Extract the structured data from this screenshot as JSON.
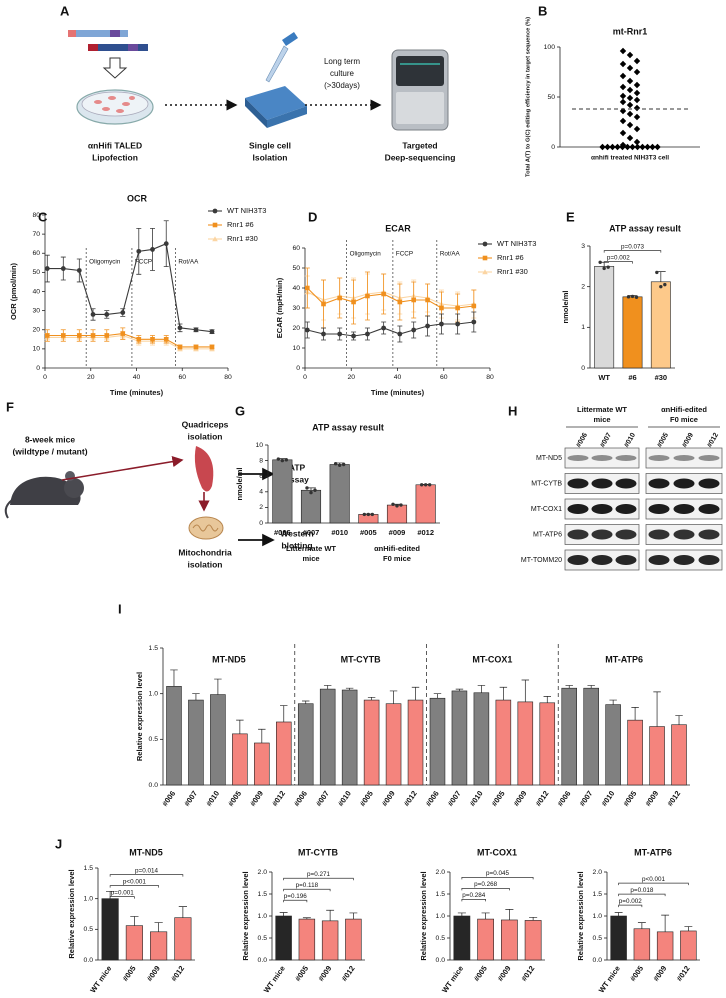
{
  "panel_labels": [
    "A",
    "B",
    "C",
    "D",
    "E",
    "F",
    "G",
    "H",
    "I",
    "J"
  ],
  "panel_a": {
    "steps": [
      [
        "αnHifi TALED",
        "Lipofection"
      ],
      [
        "Single cell",
        "Isolation"
      ],
      [
        "Targeted",
        "Deep-sequencing"
      ]
    ],
    "arrow_label": [
      "Long term",
      "culture",
      "(>30days)"
    ]
  },
  "panel_f": {
    "mouse": [
      "8-week mice",
      "(wildtype / mutant)"
    ],
    "tissue": [
      "Quadriceps",
      "isolation"
    ],
    "organelle": [
      "Mitochondria",
      "isolation"
    ],
    "assays": [
      [
        "ATP",
        "assay"
      ],
      [
        "Western",
        "blotting"
      ]
    ]
  },
  "panel_h": {
    "groups": [
      [
        "Littermate WT",
        "mice"
      ],
      [
        "αnHifi-edited",
        "F0 mice"
      ]
    ],
    "lanes": [
      "#006",
      "#007",
      "#010",
      "#005",
      "#009",
      "#012"
    ],
    "proteins": [
      "MT-ND5",
      "MT-CYTB",
      "MT-COX1",
      "MT-ATP6",
      "MT-TOMM20"
    ]
  },
  "chart_data": [
    {
      "type": "scatter",
      "title": "mt-Rnr1",
      "ylabel": "Total A(T) to G(C) editing efficiency in target sequence (%)",
      "category": "αnhifi treated NIH3T3 cell",
      "values": [
        96,
        92,
        86,
        83,
        79,
        75,
        71,
        66,
        62,
        60,
        57,
        54,
        51,
        49,
        47,
        45,
        42,
        39,
        36,
        33,
        30,
        26,
        22,
        18,
        14,
        9,
        5,
        2,
        0,
        0,
        0,
        0,
        0,
        0,
        0,
        0,
        0,
        0,
        0,
        0
      ],
      "hline": 38,
      "ylim": [
        0,
        100
      ],
      "yticks": [
        0,
        50,
        100
      ],
      "color": "#000000"
    },
    {
      "type": "line",
      "title": "OCR",
      "xlabel": "Time (minutes)",
      "ylabel": "OCR (pmol/min)",
      "x": [
        1,
        8,
        15,
        21,
        27,
        34,
        41,
        47,
        53,
        59,
        66,
        73
      ],
      "xlim": [
        0,
        80
      ],
      "xticks": [
        0,
        20,
        40,
        60,
        80
      ],
      "ylim": [
        0,
        80
      ],
      "yticks": [
        0,
        10,
        20,
        30,
        40,
        50,
        60,
        70,
        80
      ],
      "annotations": [
        {
          "label": "Oligomycin",
          "x": 18
        },
        {
          "label": "FCCP",
          "x": 38
        },
        {
          "label": "Rot/AA",
          "x": 57
        }
      ],
      "series": [
        {
          "name": "WT NIH3T3",
          "color": "#3a3a3a",
          "marker": "circle",
          "values": [
            52,
            52,
            51,
            28,
            28,
            29,
            61,
            62,
            65,
            21,
            20,
            19
          ],
          "errors": [
            7,
            6,
            6,
            3,
            2,
            2,
            12,
            11,
            12,
            2,
            1,
            1
          ]
        },
        {
          "name": "Rnr1 #6",
          "color": "#f0901e",
          "marker": "square",
          "values": [
            17,
            17,
            17,
            17,
            17,
            18,
            15,
            15,
            15,
            11,
            11,
            11
          ],
          "errors": [
            3,
            3,
            3,
            3,
            3,
            3,
            2,
            2,
            2,
            1,
            1,
            1
          ]
        },
        {
          "name": "Rnr1 #30",
          "color": "#fbd5a3",
          "marker": "triangle",
          "values": [
            16,
            16,
            16,
            16,
            16,
            17,
            14,
            14,
            14,
            10,
            10,
            10
          ],
          "errors": [
            2,
            2,
            2,
            2,
            2,
            2,
            2,
            2,
            2,
            1,
            1,
            1
          ]
        }
      ]
    },
    {
      "type": "line",
      "title": "ECAR",
      "xlabel": "Time (minutes)",
      "ylabel": "ECAR (mpH/min)",
      "x": [
        1,
        8,
        15,
        21,
        27,
        34,
        41,
        47,
        53,
        59,
        66,
        73
      ],
      "xlim": [
        0,
        80
      ],
      "xticks": [
        0,
        20,
        40,
        60,
        80
      ],
      "ylim": [
        0,
        60
      ],
      "yticks": [
        0,
        10,
        20,
        30,
        40,
        50,
        60
      ],
      "annotations": [
        {
          "label": "Oligomycin",
          "x": 18
        },
        {
          "label": "FCCP",
          "x": 38
        },
        {
          "label": "Rot/AA",
          "x": 57
        }
      ],
      "series": [
        {
          "name": "WT NIH3T3",
          "color": "#3a3a3a",
          "marker": "circle",
          "values": [
            19,
            17,
            17,
            16,
            17,
            20,
            17,
            19,
            21,
            22,
            22,
            23
          ],
          "errors": [
            4,
            3,
            3,
            2,
            3,
            3,
            4,
            4,
            5,
            5,
            5,
            5
          ]
        },
        {
          "name": "Rnr1 #6",
          "color": "#f0901e",
          "marker": "square",
          "values": [
            40,
            32,
            35,
            33,
            36,
            37,
            33,
            34,
            34,
            30,
            30,
            31
          ],
          "errors": [
            10,
            12,
            10,
            11,
            12,
            10,
            9,
            9,
            8,
            8,
            7,
            8
          ]
        },
        {
          "name": "Rnr1 #30",
          "color": "#fbd5a3",
          "marker": "triangle",
          "values": [
            38,
            34,
            36,
            35,
            37,
            38,
            35,
            36,
            35,
            32,
            31,
            32
          ],
          "errors": [
            8,
            10,
            9,
            10,
            10,
            9,
            8,
            8,
            7,
            7,
            7,
            7
          ]
        }
      ]
    },
    {
      "type": "bar",
      "title": "ATP assay result",
      "ylabel": "nmole/ml",
      "categories": [
        "WT",
        "#6",
        "#30"
      ],
      "values": [
        2.5,
        1.75,
        2.12
      ],
      "errors": [
        0.1,
        0.03,
        0.25
      ],
      "points": [
        [
          2.6,
          2.45,
          2.48
        ],
        [
          1.75,
          1.76,
          1.74
        ],
        [
          2.35,
          2.0,
          2.05
        ]
      ],
      "colors": [
        "#d9d9d9",
        "#f0901e",
        "#fdc98a"
      ],
      "ylim": [
        0,
        3
      ],
      "yticks": [
        0,
        1,
        2,
        3
      ],
      "comparisons": [
        {
          "label": "p=0.002",
          "between": [
            "WT",
            "#6"
          ]
        },
        {
          "label": "p=0.073",
          "between": [
            "WT",
            "#30"
          ]
        }
      ]
    },
    {
      "type": "bar",
      "title": "ATP assay result",
      "ylabel": "nmole/ml",
      "categories": [
        "#006",
        "#007",
        "#010",
        "#005",
        "#009",
        "#012"
      ],
      "values": [
        8.1,
        4.2,
        7.5,
        1.1,
        2.3,
        4.9
      ],
      "errors": [
        0.15,
        0.3,
        0.2,
        0.05,
        0.1,
        0.05
      ],
      "points": [
        [
          8.2,
          8.0,
          8.1
        ],
        [
          4.5,
          3.9,
          4.2
        ],
        [
          7.6,
          7.4,
          7.5
        ],
        [
          1.1,
          1.1,
          1.1
        ],
        [
          2.4,
          2.2,
          2.3
        ],
        [
          4.9,
          4.9,
          4.9
        ]
      ],
      "colors": [
        "#808080",
        "#808080",
        "#808080",
        "#f4847d",
        "#f4847d",
        "#f4847d"
      ],
      "ylim": [
        0,
        10
      ],
      "yticks": [
        0,
        2,
        4,
        6,
        8,
        10
      ],
      "groups": [
        {
          "label": [
            "Littermate WT",
            "mice"
          ],
          "categories": [
            "#006",
            "#007",
            "#010"
          ]
        },
        {
          "label": [
            "αnHifi-edited",
            "F0 mice"
          ],
          "categories": [
            "#005",
            "#009",
            "#012"
          ]
        }
      ]
    },
    {
      "type": "bar",
      "ylabel": "Relative expression level",
      "categories": [
        "#006",
        "#007",
        "#010",
        "#005",
        "#009",
        "#012"
      ],
      "colors": [
        "#808080",
        "#808080",
        "#808080",
        "#f4847d",
        "#f4847d",
        "#f4847d"
      ],
      "ylim": [
        0,
        1.5
      ],
      "yticks": [
        {
          "value": 0,
          "label": "0.0"
        },
        0.5,
        {
          "value": 1,
          "label": "1.0"
        },
        1.5
      ],
      "facets": [
        {
          "title": "MT-ND5",
          "values": [
            1.08,
            0.93,
            0.99,
            0.56,
            0.46,
            0.69
          ],
          "errors": [
            0.18,
            0.07,
            0.17,
            0.15,
            0.15,
            0.18
          ]
        },
        {
          "title": "MT-CYTB",
          "values": [
            0.89,
            1.05,
            1.04,
            0.93,
            0.89,
            0.93
          ],
          "errors": [
            0.03,
            0.04,
            0.02,
            0.03,
            0.14,
            0.14
          ]
        },
        {
          "title": "MT-COX1",
          "values": [
            0.95,
            1.03,
            1.01,
            0.93,
            0.91,
            0.9
          ],
          "errors": [
            0.05,
            0.02,
            0.08,
            0.14,
            0.24,
            0.07
          ]
        },
        {
          "title": "MT-ATP6",
          "values": [
            1.06,
            1.06,
            0.88,
            0.71,
            0.64,
            0.66
          ],
          "errors": [
            0.03,
            0.03,
            0.05,
            0.14,
            0.38,
            0.1
          ]
        }
      ]
    },
    {
      "type": "bar",
      "title": "MT-ND5",
      "ylabel": "Relative expression level",
      "categories": [
        "WT mice",
        "#005",
        "#009",
        "#012"
      ],
      "values": [
        1.0,
        0.56,
        0.46,
        0.69
      ],
      "errors": [
        0.12,
        0.15,
        0.15,
        0.18
      ],
      "colors": [
        "#262626",
        "#f4847d",
        "#f4847d",
        "#f4847d"
      ],
      "ylim": [
        0,
        1.5
      ],
      "yticks": [
        {
          "value": 0,
          "label": "0.0"
        },
        0.5,
        {
          "value": 1,
          "label": "1.0"
        },
        1.5
      ],
      "comparisons": [
        {
          "label": "p=0.001",
          "between": [
            "WT mice",
            "#005"
          ]
        },
        {
          "label": "p<0.001",
          "between": [
            "WT mice",
            "#009"
          ]
        },
        {
          "label": "p=0.014",
          "between": [
            "WT mice",
            "#012"
          ]
        }
      ]
    },
    {
      "type": "bar",
      "title": "MT-CYTB",
      "ylabel": "Relative expression level",
      "categories": [
        "WT mice",
        "#005",
        "#009",
        "#012"
      ],
      "values": [
        1.0,
        0.93,
        0.89,
        0.93
      ],
      "errors": [
        0.08,
        0.03,
        0.24,
        0.14
      ],
      "colors": [
        "#262626",
        "#f4847d",
        "#f4847d",
        "#f4847d"
      ],
      "ylim": [
        0,
        2
      ],
      "yticks": [
        {
          "value": 0,
          "label": "0.0"
        },
        0.5,
        {
          "value": 1,
          "label": "1.0"
        },
        1.5,
        {
          "value": 2,
          "label": "2.0"
        }
      ],
      "comparisons": [
        {
          "label": "p=0.196",
          "between": [
            "WT mice",
            "#005"
          ]
        },
        {
          "label": "p=0.118",
          "between": [
            "WT mice",
            "#009"
          ]
        },
        {
          "label": "p=0.271",
          "between": [
            "WT mice",
            "#012"
          ]
        }
      ]
    },
    {
      "type": "bar",
      "title": "MT-COX1",
      "ylabel": "Relative expression level",
      "categories": [
        "WT mice",
        "#005",
        "#009",
        "#012"
      ],
      "values": [
        1.0,
        0.93,
        0.91,
        0.9
      ],
      "errors": [
        0.07,
        0.14,
        0.24,
        0.07
      ],
      "colors": [
        "#262626",
        "#f4847d",
        "#f4847d",
        "#f4847d"
      ],
      "ylim": [
        0,
        2
      ],
      "yticks": [
        {
          "value": 0,
          "label": "0.0"
        },
        0.5,
        {
          "value": 1,
          "label": "1.0"
        },
        1.5,
        {
          "value": 2,
          "label": "2.0"
        }
      ],
      "comparisons": [
        {
          "label": "p=0.284",
          "between": [
            "WT mice",
            "#005"
          ]
        },
        {
          "label": "p=0.268",
          "between": [
            "WT mice",
            "#009"
          ]
        },
        {
          "label": "p=0.045",
          "between": [
            "WT mice",
            "#012"
          ]
        }
      ]
    },
    {
      "type": "bar",
      "title": "MT-ATP6",
      "ylabel": "Relative expression level",
      "categories": [
        "WT mice",
        "#005",
        "#009",
        "#012"
      ],
      "values": [
        1.0,
        0.71,
        0.64,
        0.66
      ],
      "errors": [
        0.08,
        0.14,
        0.38,
        0.1
      ],
      "colors": [
        "#262626",
        "#f4847d",
        "#f4847d",
        "#f4847d"
      ],
      "ylim": [
        0,
        2
      ],
      "yticks": [
        {
          "value": 0,
          "label": "0.0"
        },
        0.5,
        {
          "value": 1,
          "label": "1.0"
        },
        1.5,
        {
          "value": 2,
          "label": "2.0"
        }
      ],
      "comparisons": [
        {
          "label": "p=0.002",
          "between": [
            "WT mice",
            "#005"
          ]
        },
        {
          "label": "p=0.018",
          "between": [
            "WT mice",
            "#009"
          ]
        },
        {
          "label": "p<0.001",
          "between": [
            "WT mice",
            "#012"
          ]
        }
      ]
    }
  ]
}
